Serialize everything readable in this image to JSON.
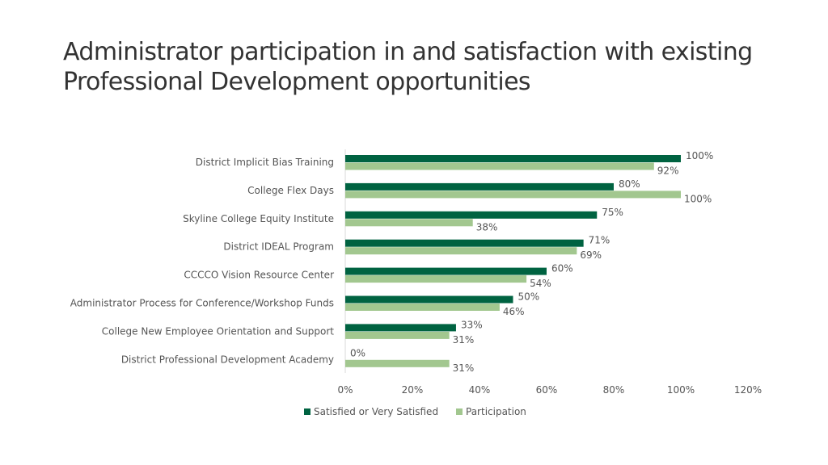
{
  "chart_data": {
    "type": "bar",
    "orientation": "horizontal",
    "title": "Administrator participation in and satisfaction with existing Professional Development opportunities",
    "categories": [
      "District Implicit Bias Training",
      "College Flex Days",
      "Skyline College Equity Institute",
      "District IDEAL Program",
      "CCCCO Vision Resource Center",
      "Administrator Process for Conference/Workshop Funds",
      "College New Employee Orientation and Support",
      "District Professional Development Academy"
    ],
    "series": [
      {
        "name": "Satisfied or Very Satisfied",
        "color": "#006341",
        "values": [
          100,
          80,
          75,
          71,
          60,
          50,
          33,
          0
        ]
      },
      {
        "name": "Participation",
        "color": "#a2c78f",
        "values": [
          92,
          100,
          38,
          69,
          54,
          46,
          31,
          31
        ]
      }
    ],
    "xlim": [
      0,
      120
    ],
    "xticks": [
      "0%",
      "20%",
      "40%",
      "60%",
      "80%",
      "100%",
      "120%"
    ],
    "legend": "bottom",
    "grid": false
  }
}
